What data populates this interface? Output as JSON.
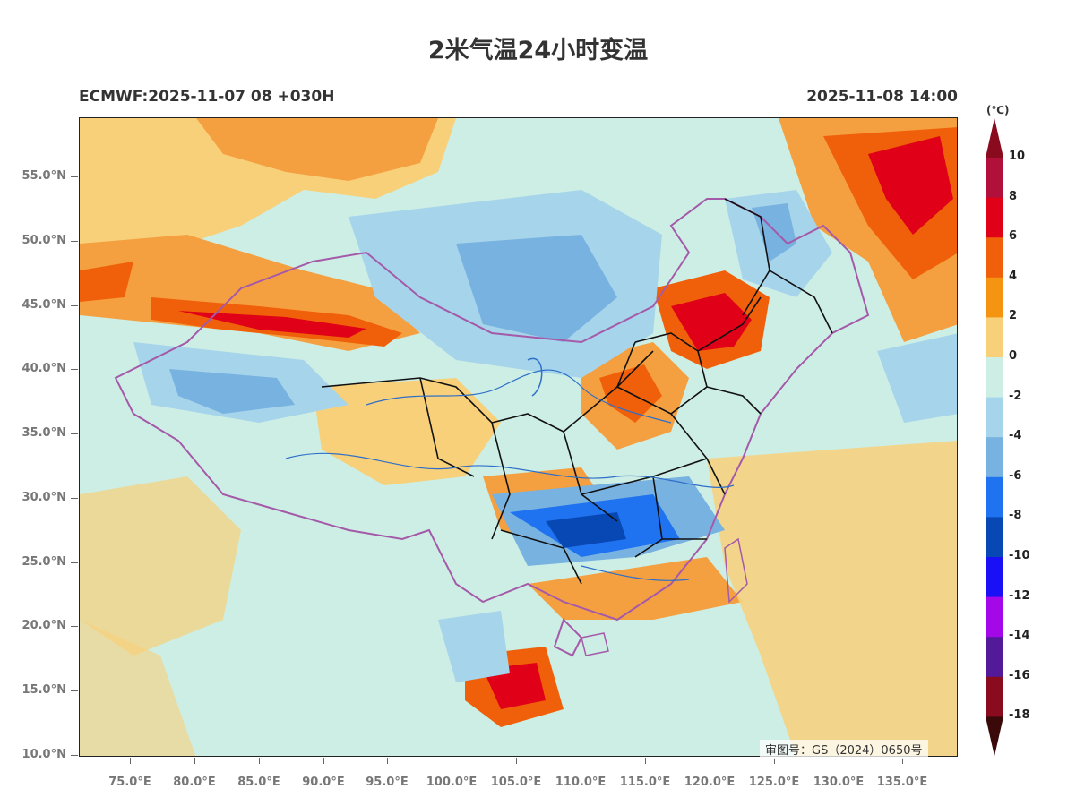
{
  "title": "2米气温24小时变温",
  "subtitle_left": "ECMWF:2025-11-07 08 +030H",
  "subtitle_right": "2025-11-08 14:00",
  "map": {
    "review_number": "审图号：GS（2024）0650号",
    "lat_range": [
      10,
      59
    ],
    "lon_range": [
      71,
      139
    ],
    "lat_ticks": [
      "55.0°N",
      "50.0°N",
      "45.0°N",
      "40.0°N",
      "35.0°N",
      "30.0°N",
      "25.0°N",
      "20.0°N",
      "15.0°N",
      "10.0°N"
    ],
    "lon_ticks": [
      "75.0°E",
      "80.0°E",
      "85.0°E",
      "90.0°E",
      "95.0°E",
      "100.0°E",
      "105.0°E",
      "110.0°E",
      "115.0°E",
      "120.0°E",
      "125.0°E",
      "130.0°E",
      "135.0°E"
    ],
    "colors": {
      "ocean_base": "#cdeee5",
      "border_national": "#a45aa8",
      "border_province": "#111111",
      "rivers": "#2f6fc7"
    }
  },
  "colorbar": {
    "unit": "(℃)",
    "labels": [
      "10",
      "8",
      "6",
      "4",
      "2",
      "0",
      "-2",
      "-4",
      "-6",
      "-8",
      "-10",
      "-12",
      "-14",
      "-16",
      "-18"
    ],
    "colors": [
      "#b0103a",
      "#e00018",
      "#f0600a",
      "#f59410",
      "#f8d07a",
      "#cdeee5",
      "#a6d4ea",
      "#78b2e0",
      "#1f72f0",
      "#0848b4",
      "#1a10f5",
      "#a408e8",
      "#521a98",
      "#8a0a1e"
    ],
    "top_cap": "#8a0a1e",
    "bottom_cap": "#3a0a0a"
  }
}
